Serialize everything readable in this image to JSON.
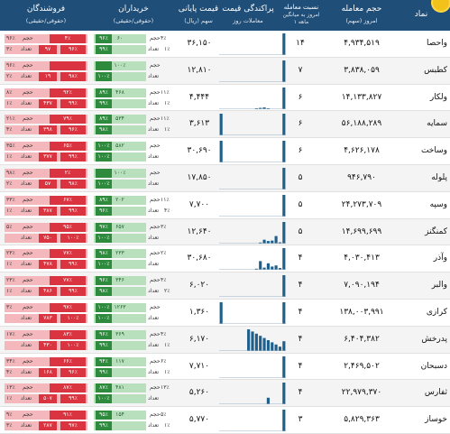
{
  "header": {
    "symbol": "نماد",
    "volume": "حجم معامله",
    "volume_sub": "امروز (سهم)",
    "ratio_line1": "نسبت معامله",
    "ratio_line2": "امروز به میانگین",
    "ratio_line3": "۱ ماهه",
    "spread": "پراکندگی قیمت",
    "spread_sub": "معاملات روز",
    "price": "قیمت پایانی",
    "price_sub": "سهم (ریال)",
    "buyers": "خریداران",
    "buyers_sub": "(حقوقی/حقیقی)",
    "sellers": "فروشندگان",
    "sellers_sub": "(حقوقی/حقیقی)"
  },
  "row_labels": {
    "vol": "حجم",
    "count": "تعداد"
  },
  "colors": {
    "header": "#1f4e79",
    "buy": "#2e8b3e",
    "sell": "#d9343f",
    "spark": "#1f5f8b"
  },
  "rows": [
    {
      "symbol": "واحصا",
      "volume": "۴,۹۳۴,۵۱۹",
      "ratio": "۱۴",
      "price": "۳۶,۱۵۰",
      "buy_top": "۶۰",
      "buy_top_pct": "۹۶٪",
      "buy_top_pct2": "۴٪",
      "buy_bot_pct": "۹۹٪",
      "buy_bot_pct2": "۱٪",
      "sell_top": "۹۶٪",
      "sell_top_pct2": "۴٪",
      "sell_bot": "۹۷",
      "sell_bot_pct": "۹۶٪",
      "sell_bot_pct2": "۳٪",
      "spark": [
        0,
        0,
        0,
        0,
        0,
        0,
        0,
        0,
        0,
        0,
        0,
        0,
        0,
        0,
        0,
        0,
        100
      ]
    },
    {
      "symbol": "کطبس",
      "volume": "۳,۸۳۸,۰۵۹",
      "ratio": "۷",
      "price": "۱۲,۸۱۰",
      "buy_top": "۱۰۰٪",
      "buy_top_pct": "",
      "buy_top_pct2": "",
      "buy_bot_pct": "۱۰۰٪",
      "buy_bot_pct2": "",
      "sell_top": "۹۶٪",
      "sell_top_pct2": "",
      "sell_bot": "۱۹",
      "sell_bot_pct": "۹۸٪",
      "sell_bot_pct2": "۲٪",
      "spark": [
        0,
        0,
        0,
        0,
        0,
        0,
        0,
        0,
        0,
        0,
        0,
        0,
        0,
        0,
        0,
        0,
        100
      ]
    },
    {
      "symbol": "ولکار",
      "volume": "۱۴,۱۳۳,۸۲۷",
      "ratio": "۶",
      "price": "۴,۴۴۴",
      "buy_top": "۴۶۸",
      "buy_top_pct": "۸۹٪",
      "buy_top_pct2": "۱۱٪",
      "buy_bot_pct": "۹۹٪",
      "buy_bot_pct2": "۱٪",
      "sell_top": "۸٪",
      "sell_top_pct2": "۹۲٪",
      "sell_bot": "۴۳۷",
      "sell_bot_pct": "۹۹٪",
      "sell_bot_pct2": "۱٪",
      "spark": [
        0,
        0,
        0,
        0,
        0,
        0,
        0,
        0,
        0,
        4,
        6,
        8,
        2,
        0,
        0,
        0,
        100
      ]
    },
    {
      "symbol": "سمایه",
      "volume": "۵۶,۱۸۸,۲۸۹",
      "ratio": "۶",
      "price": "۳,۶۱۳",
      "buy_top": "۵۳۴",
      "buy_top_pct": "۸۹٪",
      "buy_top_pct2": "۱۱٪",
      "buy_bot_pct": "۹۸٪",
      "buy_bot_pct2": "۱٪",
      "sell_top": "۲۱٪",
      "sell_top_pct2": "۷۹٪",
      "sell_bot": "۳۹۸",
      "sell_bot_pct": "۹۶٪",
      "sell_bot_pct2": "۴٪",
      "spark": [
        100,
        0,
        0,
        0,
        0,
        0,
        0,
        0,
        0,
        0,
        0,
        0,
        0,
        0,
        0,
        0,
        100
      ]
    },
    {
      "symbol": "وساخت",
      "volume": "۴,۶۲۶,۱۷۸",
      "ratio": "۶",
      "price": "۳۰,۶۹۰",
      "buy_top": "۵۸۲",
      "buy_top_pct": "۱۰۰٪",
      "buy_top_pct2": "",
      "buy_bot_pct": "۱۰۰٪",
      "buy_bot_pct2": "",
      "sell_top": "۳۵٪",
      "sell_top_pct2": "۶۵٪",
      "sell_bot": "۳۷۷",
      "sell_bot_pct": "۹۹٪",
      "sell_bot_pct2": "۱٪",
      "spark": [
        100,
        0,
        0,
        0,
        0,
        0,
        0,
        0,
        0,
        0,
        0,
        0,
        0,
        0,
        0,
        0,
        100
      ]
    },
    {
      "symbol": "پلوله",
      "volume": "۹۴۶,۷۹۰",
      "ratio": "۵",
      "price": "۱۷,۸۵۰",
      "buy_top": "۱۰۰٪",
      "buy_top_pct": "",
      "buy_top_pct2": "",
      "buy_bot_pct": "۱۰۰٪",
      "buy_bot_pct2": "",
      "sell_top": "۹۸٪",
      "sell_top_pct2": "۲٪",
      "sell_bot": "۵۷",
      "sell_bot_pct": "۹۸٪",
      "sell_bot_pct2": "۲٪",
      "spark": [
        0,
        0,
        0,
        0,
        0,
        0,
        0,
        0,
        0,
        0,
        0,
        0,
        0,
        0,
        0,
        0,
        100
      ]
    },
    {
      "symbol": "وسپه",
      "volume": "۲۴,۲۷۳,۷۰۹",
      "ratio": "۵",
      "price": "۷,۷۰۰",
      "buy_top": "۲۰۲",
      "buy_top_pct": "۸۹٪",
      "buy_top_pct2": "۱۱٪",
      "buy_bot_pct": "۹۶٪",
      "buy_bot_pct2": "۴٪",
      "sell_top": "۳۳٪",
      "sell_top_pct2": "۶۷٪",
      "sell_bot": "۳۸۷",
      "sell_bot_pct": "۹۹٪",
      "sell_bot_pct2": "۱٪",
      "spark": [
        0,
        0,
        0,
        0,
        0,
        0,
        0,
        0,
        0,
        0,
        0,
        0,
        0,
        0,
        0,
        0,
        100
      ]
    },
    {
      "symbol": "کمنگنز",
      "volume": "۱۴,۶۹۹,۶۹۹",
      "ratio": "۵",
      "price": "۱۲,۶۴۰",
      "buy_top": "۶۵۷",
      "buy_top_pct": "۹۷٪",
      "buy_top_pct2": "۳٪",
      "buy_bot_pct": "۱۰۰٪",
      "buy_bot_pct2": "",
      "sell_top": "۵٪",
      "sell_top_pct2": "۹۵٪",
      "sell_bot": "۷۵۰",
      "sell_bot_pct": "۱۰۰٪",
      "sell_bot_pct2": "",
      "spark": [
        0,
        0,
        0,
        0,
        0,
        0,
        0,
        0,
        0,
        0,
        5,
        18,
        12,
        14,
        35,
        6,
        100
      ]
    },
    {
      "symbol": "وآذر",
      "volume": "۴,۰۳۰,۴۱۳",
      "ratio": "۴",
      "price": "۳۰,۶۸۰",
      "buy_top": "۲۳۳",
      "buy_top_pct": "۹۸٪",
      "buy_top_pct2": "۲٪",
      "buy_bot_pct": "۱۰۰٪",
      "buy_bot_pct2": "",
      "sell_top": "۲۳٪",
      "sell_top_pct2": "۷۷٪",
      "sell_bot": "۴۷۸",
      "sell_bot_pct": "۹۹٪",
      "sell_bot_pct2": "۱٪",
      "spark": [
        0,
        0,
        0,
        0,
        0,
        0,
        0,
        0,
        0,
        5,
        40,
        10,
        30,
        15,
        20,
        8,
        100
      ]
    },
    {
      "symbol": "والبر",
      "volume": "۷,۰۹۰,۱۹۴",
      "ratio": "۴",
      "price": "۶,۰۲۰",
      "buy_top": "۳۴۶",
      "buy_top_pct": "۹۶٪",
      "buy_top_pct2": "۴٪",
      "buy_bot_pct": "۹۸٪",
      "buy_bot_pct2": "۲٪",
      "sell_top": "۲۳٪",
      "sell_top_pct2": "۷۷٪",
      "sell_bot": "۴۸۶",
      "sell_bot_pct": "۹۹٪",
      "sell_bot_pct2": "۱٪",
      "spark": [
        0,
        0,
        0,
        0,
        0,
        0,
        0,
        0,
        0,
        0,
        0,
        0,
        0,
        0,
        0,
        0,
        100
      ]
    },
    {
      "symbol": "کرازی",
      "volume": "۱۳۸,۰۰۳,۹۹۱",
      "ratio": "۴",
      "price": "۱,۳۶۰",
      "buy_top": "۱۲۶۳",
      "buy_top_pct": "۱۰۰٪",
      "buy_top_pct2": "",
      "buy_bot_pct": "۱۰۰٪",
      "buy_bot_pct2": "",
      "sell_top": "۳٪",
      "sell_top_pct2": "۹۷٪",
      "sell_bot": "۷۸۳",
      "sell_bot_pct": "۱۰۰٪",
      "sell_bot_pct2": "",
      "spark": [
        100,
        0,
        0,
        0,
        0,
        0,
        0,
        0,
        0,
        0,
        0,
        0,
        0,
        0,
        0,
        0,
        100
      ]
    },
    {
      "symbol": "پدرخش",
      "volume": "۶,۴۰۴,۳۸۲",
      "ratio": "۴",
      "price": "۶,۱۷۰",
      "buy_top": "۳۶۹",
      "buy_top_pct": "۹۶٪",
      "buy_top_pct2": "۴٪",
      "buy_bot_pct": "۹۹٪",
      "buy_bot_pct2": "۱٪",
      "sell_top": "۱۷٪",
      "sell_top_pct2": "۸۳٪",
      "sell_bot": "۴۳۰",
      "sell_bot_pct": "۱۰۰٪",
      "sell_bot_pct2": "",
      "spark": [
        0,
        0,
        0,
        0,
        0,
        0,
        0,
        100,
        90,
        80,
        70,
        60,
        50,
        40,
        30,
        20,
        45
      ]
    },
    {
      "symbol": "دسبحان",
      "volume": "۲,۴۶۹,۵۰۲",
      "ratio": "۴",
      "price": "۷,۷۱۰",
      "buy_top": "۱۱۷",
      "buy_top_pct": "۹۴٪",
      "buy_top_pct2": "۶٪",
      "buy_bot_pct": "۹۹٪",
      "buy_bot_pct2": "۱٪",
      "sell_top": "۳۴٪",
      "sell_top_pct2": "۶۶٪",
      "sell_bot": "۱۶۸",
      "sell_bot_pct": "۹۶٪",
      "sell_bot_pct2": "۴٪",
      "spark": [
        0,
        0,
        0,
        0,
        0,
        0,
        0,
        0,
        0,
        0,
        0,
        0,
        0,
        0,
        0,
        0,
        100
      ]
    },
    {
      "symbol": "ثفارس",
      "volume": "۲۲,۹۷۹,۳۷۰",
      "ratio": "۴",
      "price": "۵,۲۶۰",
      "buy_top": "۴۸۱",
      "buy_top_pct": "۸۷٪",
      "buy_top_pct2": "۱۳٪",
      "buy_bot_pct": "۱۰۰٪",
      "buy_bot_pct2": "",
      "sell_top": "۱۳٪",
      "sell_top_pct2": "۸۷٪",
      "sell_bot": "۵۰۷",
      "sell_bot_pct": "۹۹٪",
      "sell_bot_pct2": "۱٪",
      "spark": [
        0,
        0,
        0,
        0,
        0,
        0,
        0,
        0,
        0,
        0,
        0,
        0,
        30,
        0,
        0,
        0,
        100
      ]
    },
    {
      "symbol": "خوساز",
      "volume": "۵,۸۲۹,۳۶۳",
      "ratio": "۳",
      "price": "۵,۷۷۰",
      "buy_top": "۱۵۴",
      "buy_top_pct": "۹۵٪",
      "buy_top_pct2": "۵٪",
      "buy_bot_pct": "۹۹٪",
      "buy_bot_pct2": "۱٪",
      "sell_top": "۹٪",
      "sell_top_pct2": "۹۱٪",
      "sell_bot": "۲۸۷",
      "sell_bot_pct": "۹۷٪",
      "sell_bot_pct2": "۳٪",
      "spark": [
        0,
        0,
        0,
        0,
        0,
        0,
        0,
        0,
        0,
        0,
        0,
        0,
        0,
        0,
        0,
        0,
        100
      ]
    }
  ]
}
